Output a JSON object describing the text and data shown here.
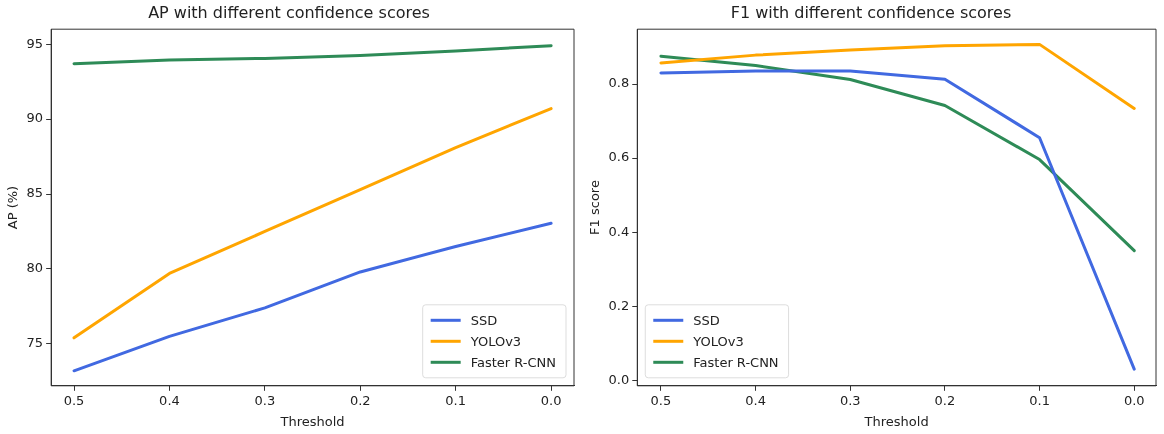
{
  "chart_data": [
    {
      "type": "line",
      "title": "AP with different confidence scores",
      "xlabel": "Threshold",
      "ylabel": "AP (%)",
      "x": [
        0.5,
        0.4,
        0.3,
        0.2,
        0.1,
        0.0
      ],
      "series": [
        {
          "name": "SSD",
          "color": "#4169e1",
          "values": [
            73.2,
            75.5,
            77.4,
            79.8,
            81.5,
            83.05
          ]
        },
        {
          "name": "YOLOv3",
          "color": "#ffa500",
          "values": [
            75.4,
            79.7,
            82.5,
            85.3,
            88.1,
            90.7
          ]
        },
        {
          "name": "Faster R-CNN",
          "color": "#2e8b57",
          "values": [
            93.7,
            93.95,
            94.05,
            94.25,
            94.55,
            94.9
          ]
        }
      ],
      "xlim": [
        0.524,
        -0.024
      ],
      "xticks": [
        0.5,
        0.4,
        0.3,
        0.2,
        0.1,
        {
          "value": 0,
          "label": "0.0"
        }
      ],
      "ylim": [
        72.2,
        96
      ],
      "yticks": [
        75,
        80,
        85,
        90,
        95
      ],
      "legend": "bottom right",
      "marker": "none",
      "line_style": "solid"
    },
    {
      "type": "line",
      "title": "F1 with different confidence scores",
      "xlabel": "Threshold",
      "ylabel": "F1 score",
      "x": [
        0.5,
        0.4,
        0.3,
        0.2,
        0.1,
        0.0
      ],
      "series": [
        {
          "name": "SSD",
          "color": "#4169e1",
          "values": [
            0.83,
            0.835,
            0.835,
            0.813,
            0.655,
            0.03
          ]
        },
        {
          "name": "YOLOv3",
          "color": "#ffa500",
          "values": [
            0.857,
            0.878,
            0.892,
            0.903,
            0.907,
            0.734
          ]
        },
        {
          "name": "Faster R-CNN",
          "color": "#2e8b57",
          "values": [
            0.875,
            0.85,
            0.812,
            0.742,
            0.596,
            0.35
          ]
        }
      ],
      "xlim": [
        0.525,
        -0.023
      ],
      "xticks": [
        0.5,
        0.4,
        0.3,
        0.2,
        0.1,
        {
          "value": 0,
          "label": "0.0"
        }
      ],
      "ylim": [
        -0.015,
        0.948
      ],
      "yticks": [
        {
          "value": 0,
          "label": "0.0"
        },
        0.2,
        0.4,
        0.6,
        0.8
      ],
      "legend": "bottom left",
      "marker": "none",
      "line_style": "solid"
    }
  ]
}
